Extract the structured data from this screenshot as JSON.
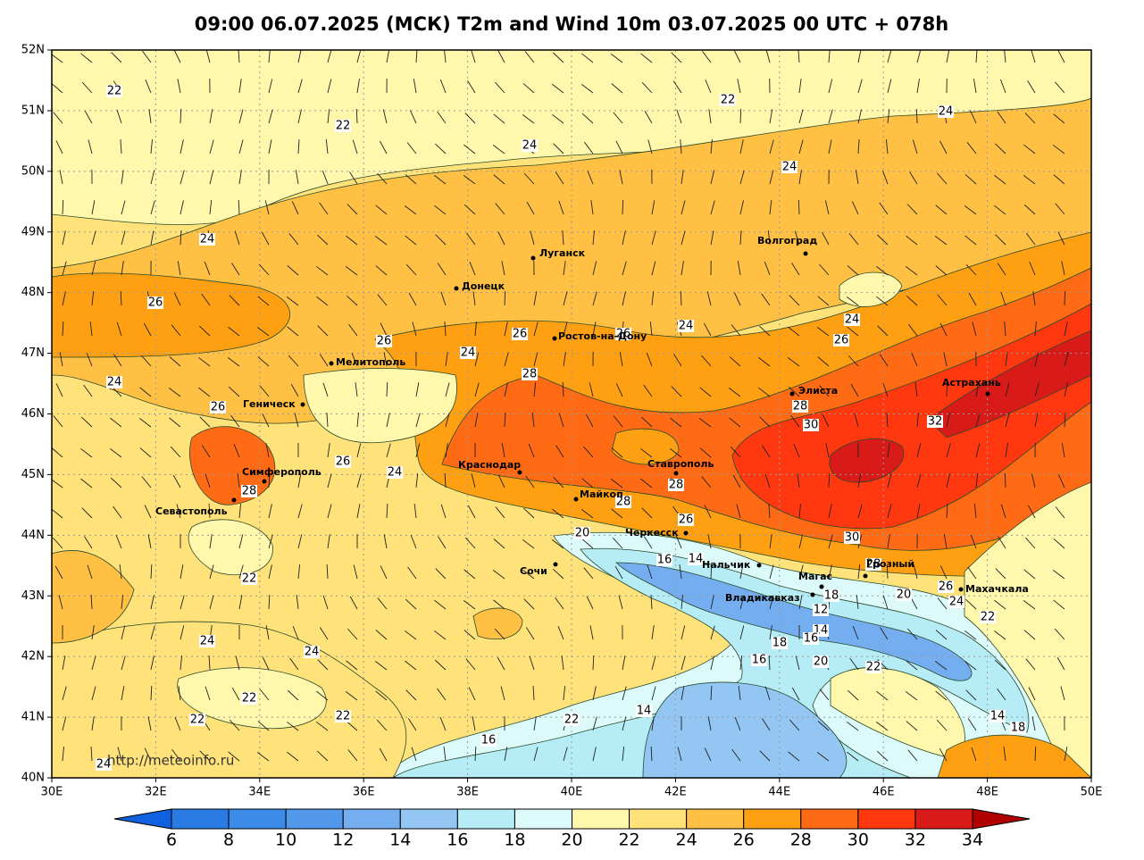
{
  "title": "09:00 06.07.2025 (МСК) T2m and Wind 10m 03.07.2025 00 UTC + 078h",
  "map": {
    "lonlim": [
      30,
      50
    ],
    "latlim": [
      40,
      52
    ],
    "lonticks": [
      {
        "value": 30,
        "label": "30E"
      },
      {
        "value": 32,
        "label": "32E"
      },
      {
        "value": 34,
        "label": "34E"
      },
      {
        "value": 36,
        "label": "36E"
      },
      {
        "value": 38,
        "label": "38E"
      },
      {
        "value": 40,
        "label": "40E"
      },
      {
        "value": 42,
        "label": "42E"
      },
      {
        "value": 44,
        "label": "44E"
      },
      {
        "value": 46,
        "label": "46E"
      },
      {
        "value": 48,
        "label": "48E"
      },
      {
        "value": 50,
        "label": "50E"
      }
    ],
    "latticks": [
      {
        "value": 52,
        "label": "52N"
      },
      {
        "value": 51,
        "label": "51N"
      },
      {
        "value": 50,
        "label": "50N"
      },
      {
        "value": 49,
        "label": "49N"
      },
      {
        "value": 48,
        "label": "48N"
      },
      {
        "value": 47,
        "label": "47N"
      },
      {
        "value": 46,
        "label": "46N"
      },
      {
        "value": 45,
        "label": "45N"
      },
      {
        "value": 44,
        "label": "44N"
      },
      {
        "value": 43,
        "label": "43N"
      },
      {
        "value": 42,
        "label": "42N"
      },
      {
        "value": 41,
        "label": "41N"
      },
      {
        "value": 40,
        "label": "40N"
      }
    ],
    "grid": true,
    "cities": [
      "Луганск",
      "Донецк",
      "Волгоград",
      "Ростов-на-Дону",
      "Мелитополь",
      "Геническ",
      "Элиста",
      "Астрахань",
      "Краснодар",
      "Ставрополь",
      "Симферополь",
      "Севастополь",
      "Майкоп",
      "Черкесск",
      "Сочи",
      "Нальчик",
      "Грозный",
      "Магас",
      "Владикавказ",
      "Махачкала"
    ],
    "contour_labels": [
      22,
      22,
      24,
      22,
      24,
      24,
      24,
      26,
      26,
      24,
      26,
      26,
      24,
      24,
      26,
      24,
      26,
      28,
      28,
      30,
      32,
      26,
      24,
      28,
      28,
      28,
      26,
      20,
      30,
      16,
      14,
      28,
      18,
      20,
      26,
      24,
      22,
      12,
      14,
      16,
      18,
      16,
      20,
      22,
      22,
      24,
      24,
      22,
      22,
      22,
      22,
      14,
      16,
      14,
      18,
      24
    ],
    "watermark": "http://meteoinfo.ru"
  },
  "colorbar": {
    "ticks": [
      6,
      8,
      10,
      12,
      14,
      16,
      18,
      20,
      22,
      24,
      26,
      28,
      30,
      32,
      34
    ],
    "colors": [
      "#2a7be4",
      "#3d8be8",
      "#5299ec",
      "#74aef0",
      "#93c6f3",
      "#b6ecf6",
      "#dcfafa",
      "#fff7ac",
      "#ffe27a",
      "#ffc044",
      "#ffa012",
      "#ff6a14",
      "#ff3810",
      "#d81a18"
    ],
    "under": "#1060e0",
    "over": "#b00000"
  }
}
